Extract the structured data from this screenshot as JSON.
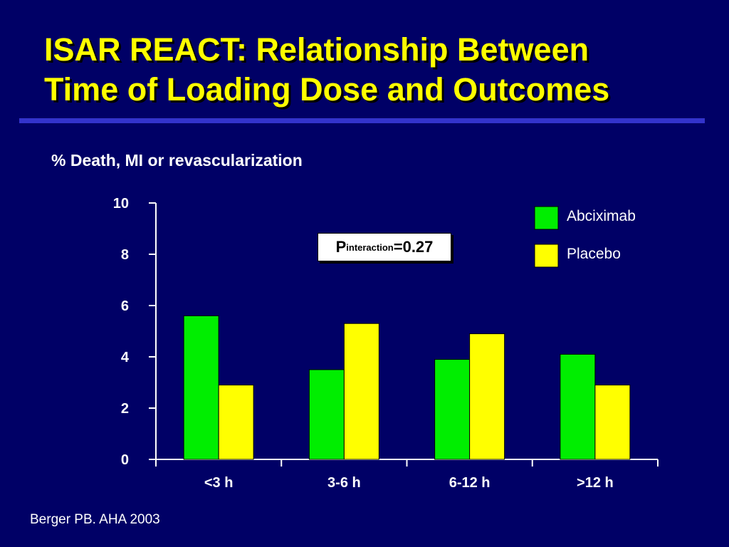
{
  "slide": {
    "title_line1": "ISAR REACT: Relationship Between",
    "title_line2": "Time of Loading Dose and Outcomes",
    "citation": "Berger PB. AHA 2003"
  },
  "colors": {
    "background": "#000066",
    "title": "#ffff00",
    "rule": "#3333cc",
    "abciximab": "#00ee00",
    "placebo": "#ffff00"
  },
  "annotation": {
    "p_letter": "P",
    "subscript": "interaction",
    "value": "=0.27"
  },
  "chart_data": {
    "type": "bar",
    "title": "% Death, MI or revascularization",
    "xlabel": "",
    "ylabel": "",
    "categories": [
      "<3 h",
      "3-6 h",
      "6-12 h",
      ">12 h"
    ],
    "series": [
      {
        "name": "Abciximab",
        "values": [
          5.6,
          3.5,
          3.9,
          4.1
        ]
      },
      {
        "name": "Placebo",
        "values": [
          2.9,
          5.3,
          4.9,
          2.9
        ]
      }
    ],
    "yticks": [
      0,
      2,
      4,
      6,
      8,
      10
    ],
    "ylim": [
      0,
      10
    ],
    "grid": false,
    "legend_position": "top-right"
  }
}
